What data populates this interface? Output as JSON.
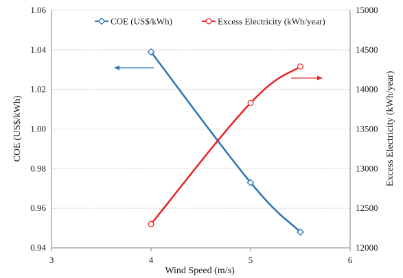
{
  "chart_data": {
    "type": "line",
    "xlabel": "Wind Speed (m/s)",
    "ylabel_left": "COE (US$/kWh)",
    "ylabel_right": "Excess Electricity (kWh/year)",
    "x_ticks": [
      3,
      4,
      5,
      6
    ],
    "y_left_ticks": [
      "0.94",
      "0.96",
      "0.98",
      "1.00",
      "1.02",
      "1.04",
      "1.06"
    ],
    "y_right_ticks": [
      "12000",
      "12500",
      "13000",
      "13500",
      "14000",
      "14500",
      "15000"
    ],
    "xlim": [
      3,
      6
    ],
    "ylim_left": [
      0.94,
      1.06
    ],
    "ylim_right": [
      12000,
      15000
    ],
    "grid": true,
    "legend_position": "top",
    "series": [
      {
        "name": "COE (US$/kWh)",
        "axis": "left",
        "color": "#2e75b6",
        "marker": "diamond",
        "x": [
          4,
          5,
          5.5
        ],
        "y": [
          1.039,
          0.973,
          0.948
        ]
      },
      {
        "name": "Excess Electricity (kWh/year)",
        "axis": "right",
        "color": "#e8282b",
        "marker": "circle",
        "x": [
          4,
          5,
          5.5
        ],
        "y": [
          12300,
          13830,
          14290
        ]
      }
    ]
  }
}
